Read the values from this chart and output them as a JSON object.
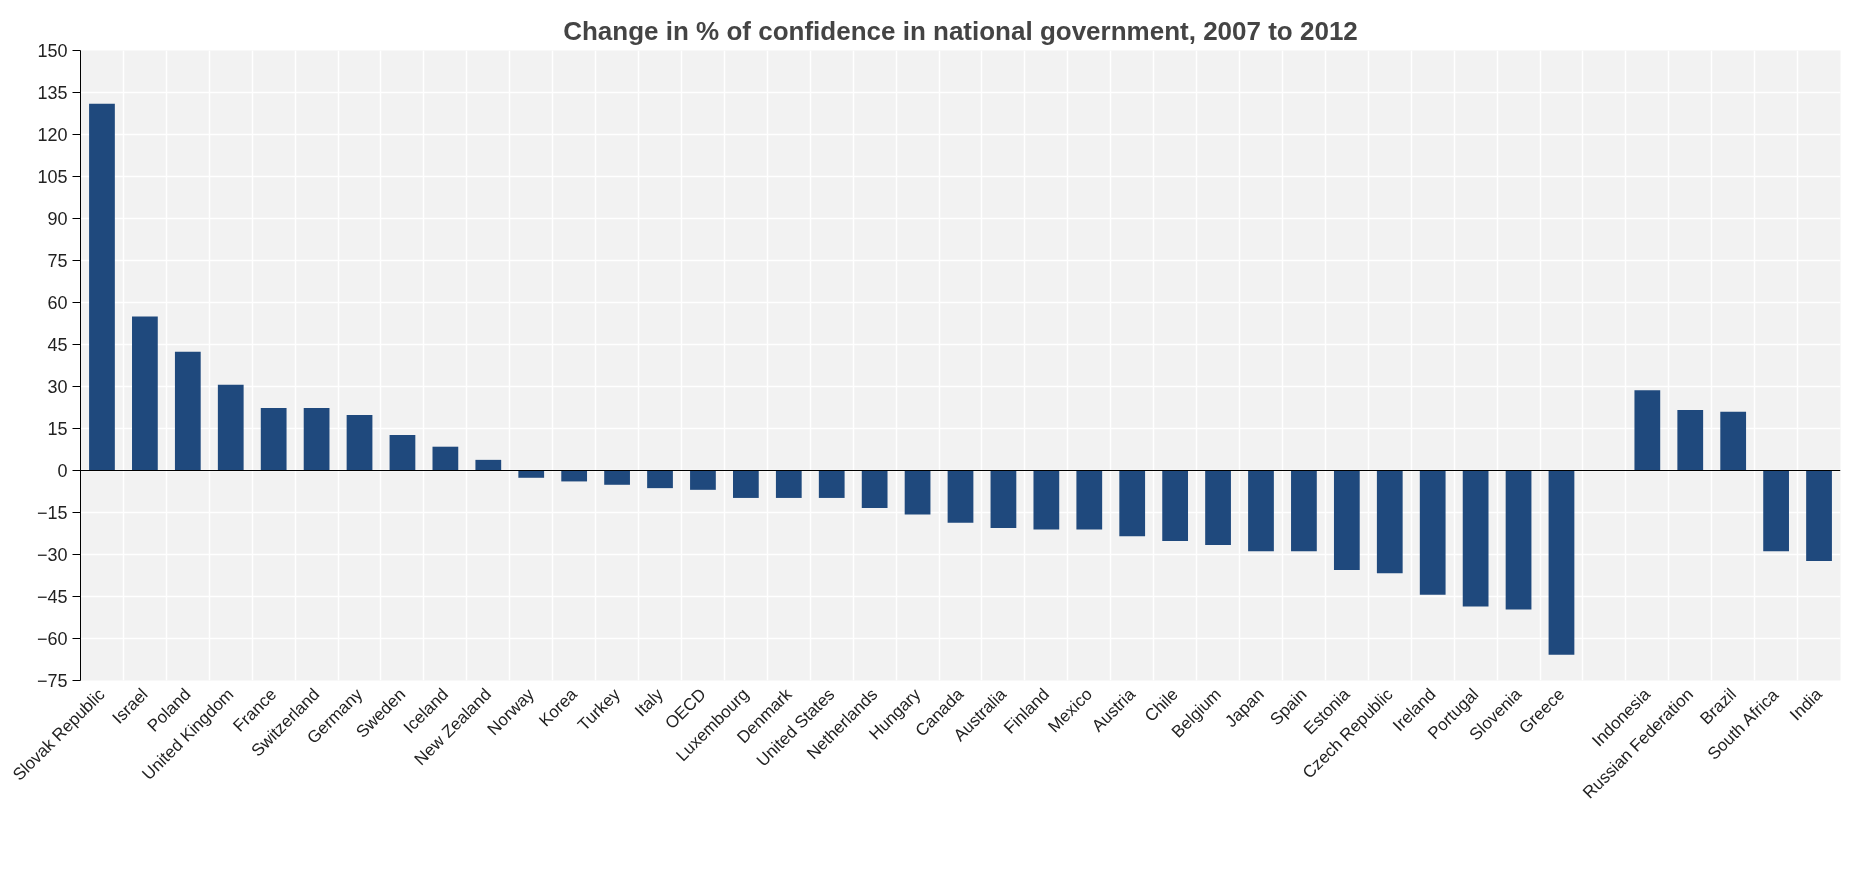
{
  "chart_data": {
    "type": "bar",
    "title": "Change in % of confidence in national government, 2007 to 2012",
    "categories": [
      "Slovak Republic",
      "Israel",
      "Poland",
      "United Kingdom",
      "France",
      "Switzerland",
      "Germany",
      "Sweden",
      "Iceland",
      "New Zealand",
      "Norway",
      "Korea",
      "Turkey",
      "Italy",
      "OECD",
      "Luxembourg",
      "Denmark",
      "United States",
      "Netherlands",
      "Hungary",
      "Canada",
      "Australia",
      "Finland",
      "Mexico",
      "Austria",
      "Chile",
      "Belgium",
      "Japan",
      "Spain",
      "Estonia",
      "Czech Republic",
      "Ireland",
      "Portugal",
      "Slovenia",
      "Greece",
      null,
      "Indonesia",
      "Russian Federation",
      "Brazil",
      "South Africa",
      "India"
    ],
    "values": [
      131,
      55,
      42.4,
      30.6,
      22.3,
      22.3,
      19.8,
      12.7,
      8.5,
      3.8,
      -2.6,
      -3.9,
      -5.1,
      -6.3,
      -6.9,
      -9.8,
      -9.8,
      -9.8,
      -13.4,
      -15.7,
      -18.7,
      -20.5,
      -21.1,
      -21.1,
      -23.5,
      -25.2,
      -26.6,
      -28.8,
      -28.8,
      -35.5,
      -36.7,
      -44.4,
      -48.6,
      -49.6,
      -65.8,
      null,
      28.7,
      21.6,
      21.0,
      -28.8,
      -32.3
    ],
    "color": "#1f497d",
    "ylim": [
      -75,
      150
    ],
    "yticks": [
      -75,
      -60,
      -45,
      -30,
      -15,
      0,
      15,
      30,
      45,
      60,
      75,
      90,
      105,
      120,
      135,
      150
    ],
    "grid": true
  }
}
